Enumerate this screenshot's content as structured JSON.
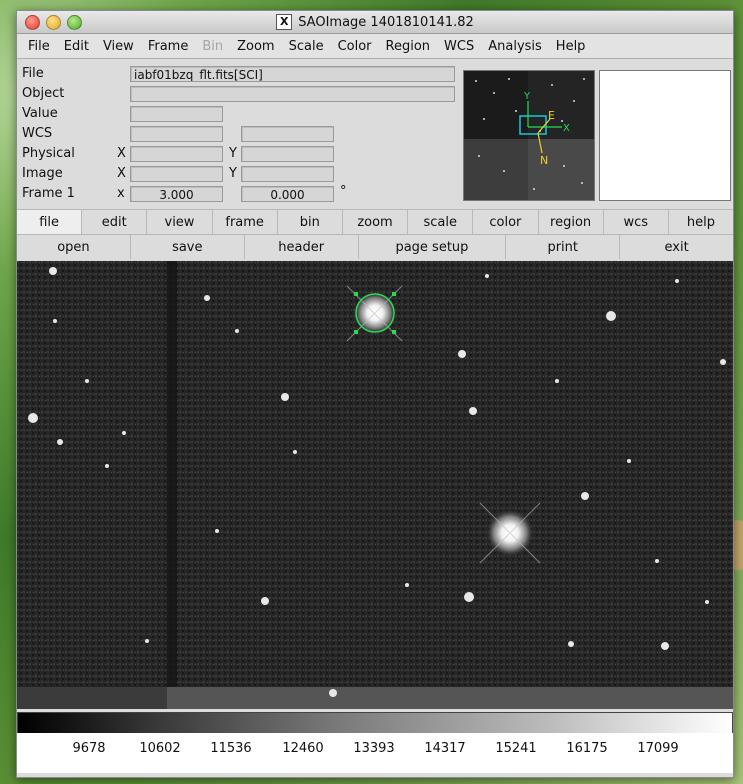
{
  "window": {
    "title": "SAOImage 1401810141.82",
    "title_icon": "X"
  },
  "menu": [
    "File",
    "Edit",
    "View",
    "Frame",
    "Bin",
    "Zoom",
    "Scale",
    "Color",
    "Region",
    "WCS",
    "Analysis",
    "Help"
  ],
  "menu_disabled": [
    "Bin"
  ],
  "info": {
    "file_label": "File",
    "file_value": "iabf01bzq_flt.fits[SCI]",
    "object_label": "Object",
    "value_label": "Value",
    "wcs_label": "WCS",
    "physical_label": "Physical",
    "image_label": "Image",
    "frame_label": "Frame 1",
    "x_label": "X",
    "y_label": "Y",
    "x_small_label": "x",
    "frame_x": "3.000",
    "frame_y": "0.000",
    "degree_symbol": "°"
  },
  "panner": {
    "x_axis": "X",
    "y_axis": "Y",
    "e_label": "E",
    "n_label": "N"
  },
  "buttons_row1": [
    "file",
    "edit",
    "view",
    "frame",
    "bin",
    "zoom",
    "scale",
    "color",
    "region",
    "wcs",
    "help"
  ],
  "buttons_row2": [
    "open",
    "save",
    "header",
    "page setup",
    "print",
    "exit"
  ],
  "colorbar_ticks": [
    "9678",
    "10602",
    "11536",
    "12460",
    "13393",
    "14317",
    "15241",
    "16175",
    "17099"
  ],
  "colors": {
    "region": "#22dd55",
    "panner_box": "#18c7d8",
    "compass": "#f2d028"
  }
}
